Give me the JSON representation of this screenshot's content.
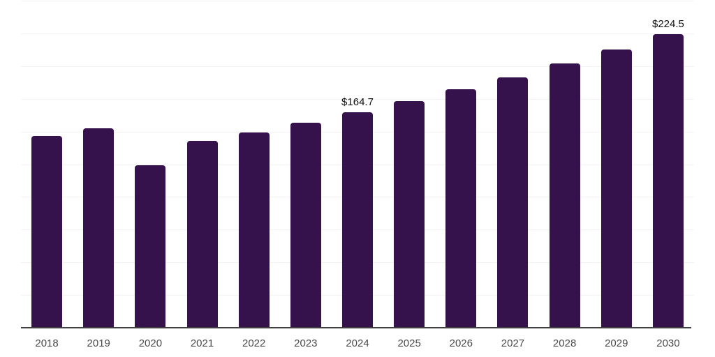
{
  "chart_data": {
    "type": "bar",
    "title": "",
    "xlabel": "",
    "ylabel": "",
    "categories": [
      "2018",
      "2019",
      "2020",
      "2021",
      "2022",
      "2023",
      "2024",
      "2025",
      "2026",
      "2027",
      "2028",
      "2029",
      "2030"
    ],
    "values": [
      146.5,
      152.4,
      124.3,
      142.6,
      149.5,
      156.6,
      164.7,
      173.2,
      182.2,
      191.3,
      201.8,
      212.6,
      224.5
    ],
    "data_labels": [
      {
        "category": "2024",
        "text": "$164.7"
      },
      {
        "category": "2030",
        "text": "$224.5"
      }
    ],
    "value_prefix": "$",
    "ylim": [
      0,
      250
    ],
    "grid_step": 25,
    "grid": "horizontal-only",
    "legend": "none",
    "colors": {
      "bar": "#35124B",
      "gridline": "#f3f3f3",
      "axis_line": "#404040",
      "tick_label": "#4a4a4a",
      "data_label": "#111111",
      "background": "#ffffff"
    }
  }
}
